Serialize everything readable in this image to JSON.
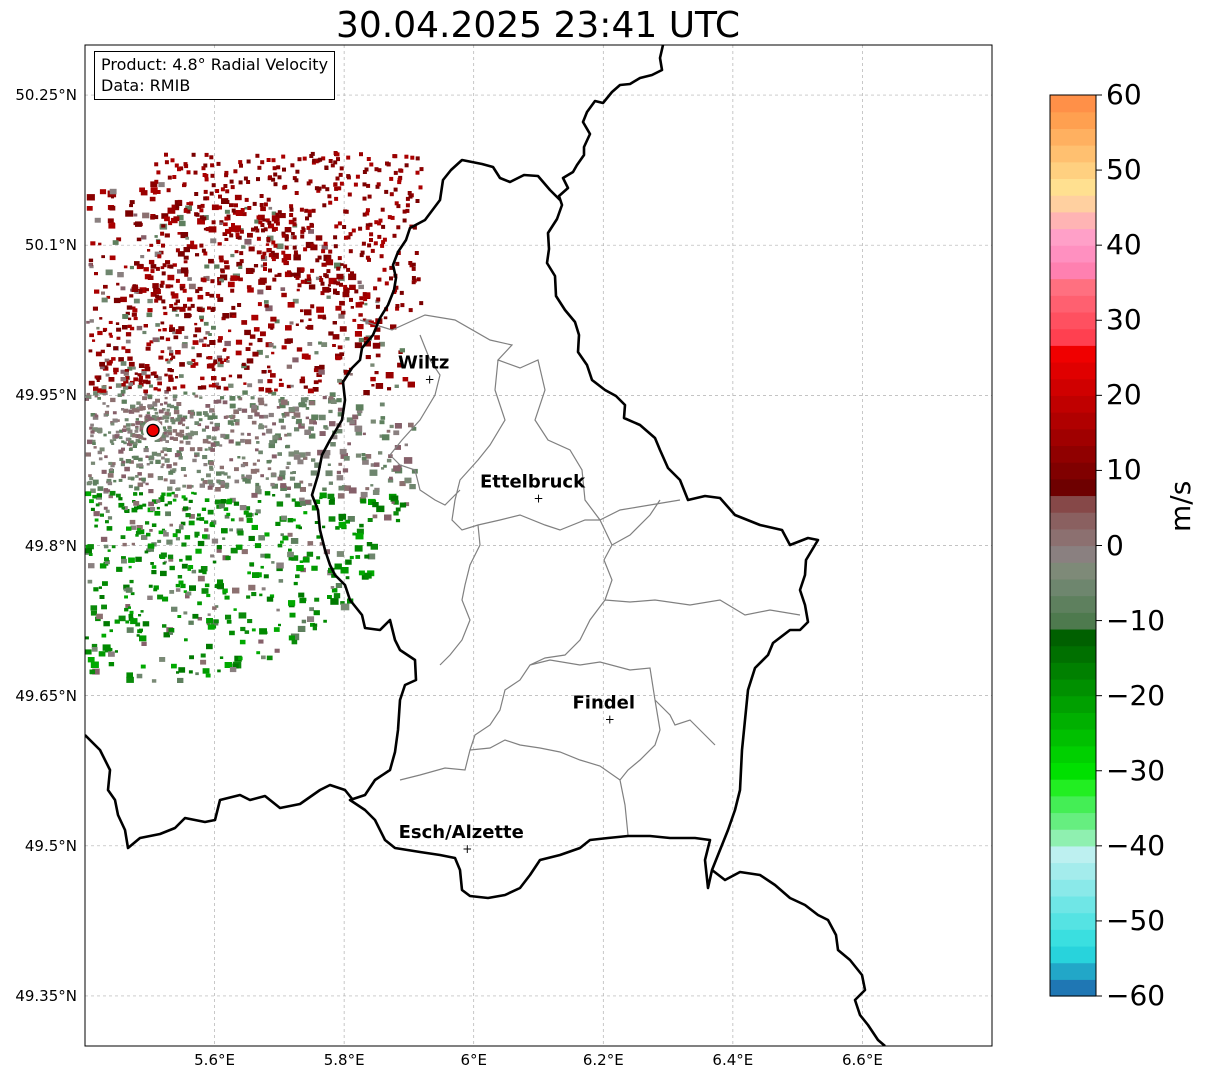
{
  "title": "30.04.2025 23:41 UTC",
  "info": {
    "product": "Product: 4.8° Radial Velocity",
    "source": "Data: RMIB"
  },
  "map": {
    "lon_range": [
      5.4,
      6.8
    ],
    "lat_range": [
      49.3,
      50.3
    ],
    "lon_ticks": [
      "5.6°E",
      "5.8°E",
      "6°E",
      "6.2°E",
      "6.4°E",
      "6.6°E"
    ],
    "lat_ticks": [
      "50.25°N",
      "50.1°N",
      "49.95°N",
      "49.8°N",
      "49.65°N",
      "49.5°N",
      "49.35°N"
    ],
    "radar_site": {
      "lon": 5.505,
      "lat": 49.915
    },
    "cities": [
      {
        "name": "Wiltz",
        "lon": 5.932,
        "lat": 49.967
      },
      {
        "name": "Ettelbruck",
        "lon": 6.1,
        "lat": 49.848
      },
      {
        "name": "Findel",
        "lon": 6.21,
        "lat": 49.627
      },
      {
        "name": "Esch/Alzette",
        "lon": 5.99,
        "lat": 49.498
      }
    ]
  },
  "colorbar": {
    "label": "m/s",
    "min": -60,
    "max": 60,
    "ticks": [
      "60",
      "50",
      "40",
      "30",
      "20",
      "10",
      "0",
      "−10",
      "−20",
      "−30",
      "−40",
      "−50",
      "−60"
    ],
    "colors": [
      "#1f77b4",
      "#22a7c8",
      "#28d3dc",
      "#3adfe0",
      "#55e3e3",
      "#6fe6e6",
      "#8ae9e9",
      "#a4ecec",
      "#bdf0f0",
      "#8ff0b0",
      "#66ee80",
      "#44ee55",
      "#22ee22",
      "#00e000",
      "#00d000",
      "#00c000",
      "#00b000",
      "#00a000",
      "#009000",
      "#008000",
      "#007000",
      "#006000",
      "#4e7a4e",
      "#5e805e",
      "#6e866e",
      "#7e8a78",
      "#8a8080",
      "#8c7070",
      "#8a6060",
      "#864848",
      "#6e0000",
      "#800000",
      "#900000",
      "#a00000",
      "#b00000",
      "#c00000",
      "#d00000",
      "#e00000",
      "#f00000",
      "#ff4050",
      "#ff5060",
      "#ff6070",
      "#ff7080",
      "#ff80b0",
      "#ff90c0",
      "#ffa0c8",
      "#ffb4b4",
      "#ffd0a0",
      "#ffe090",
      "#ffd080",
      "#ffc070",
      "#ffb060",
      "#ffa050",
      "#ff9048"
    ]
  }
}
